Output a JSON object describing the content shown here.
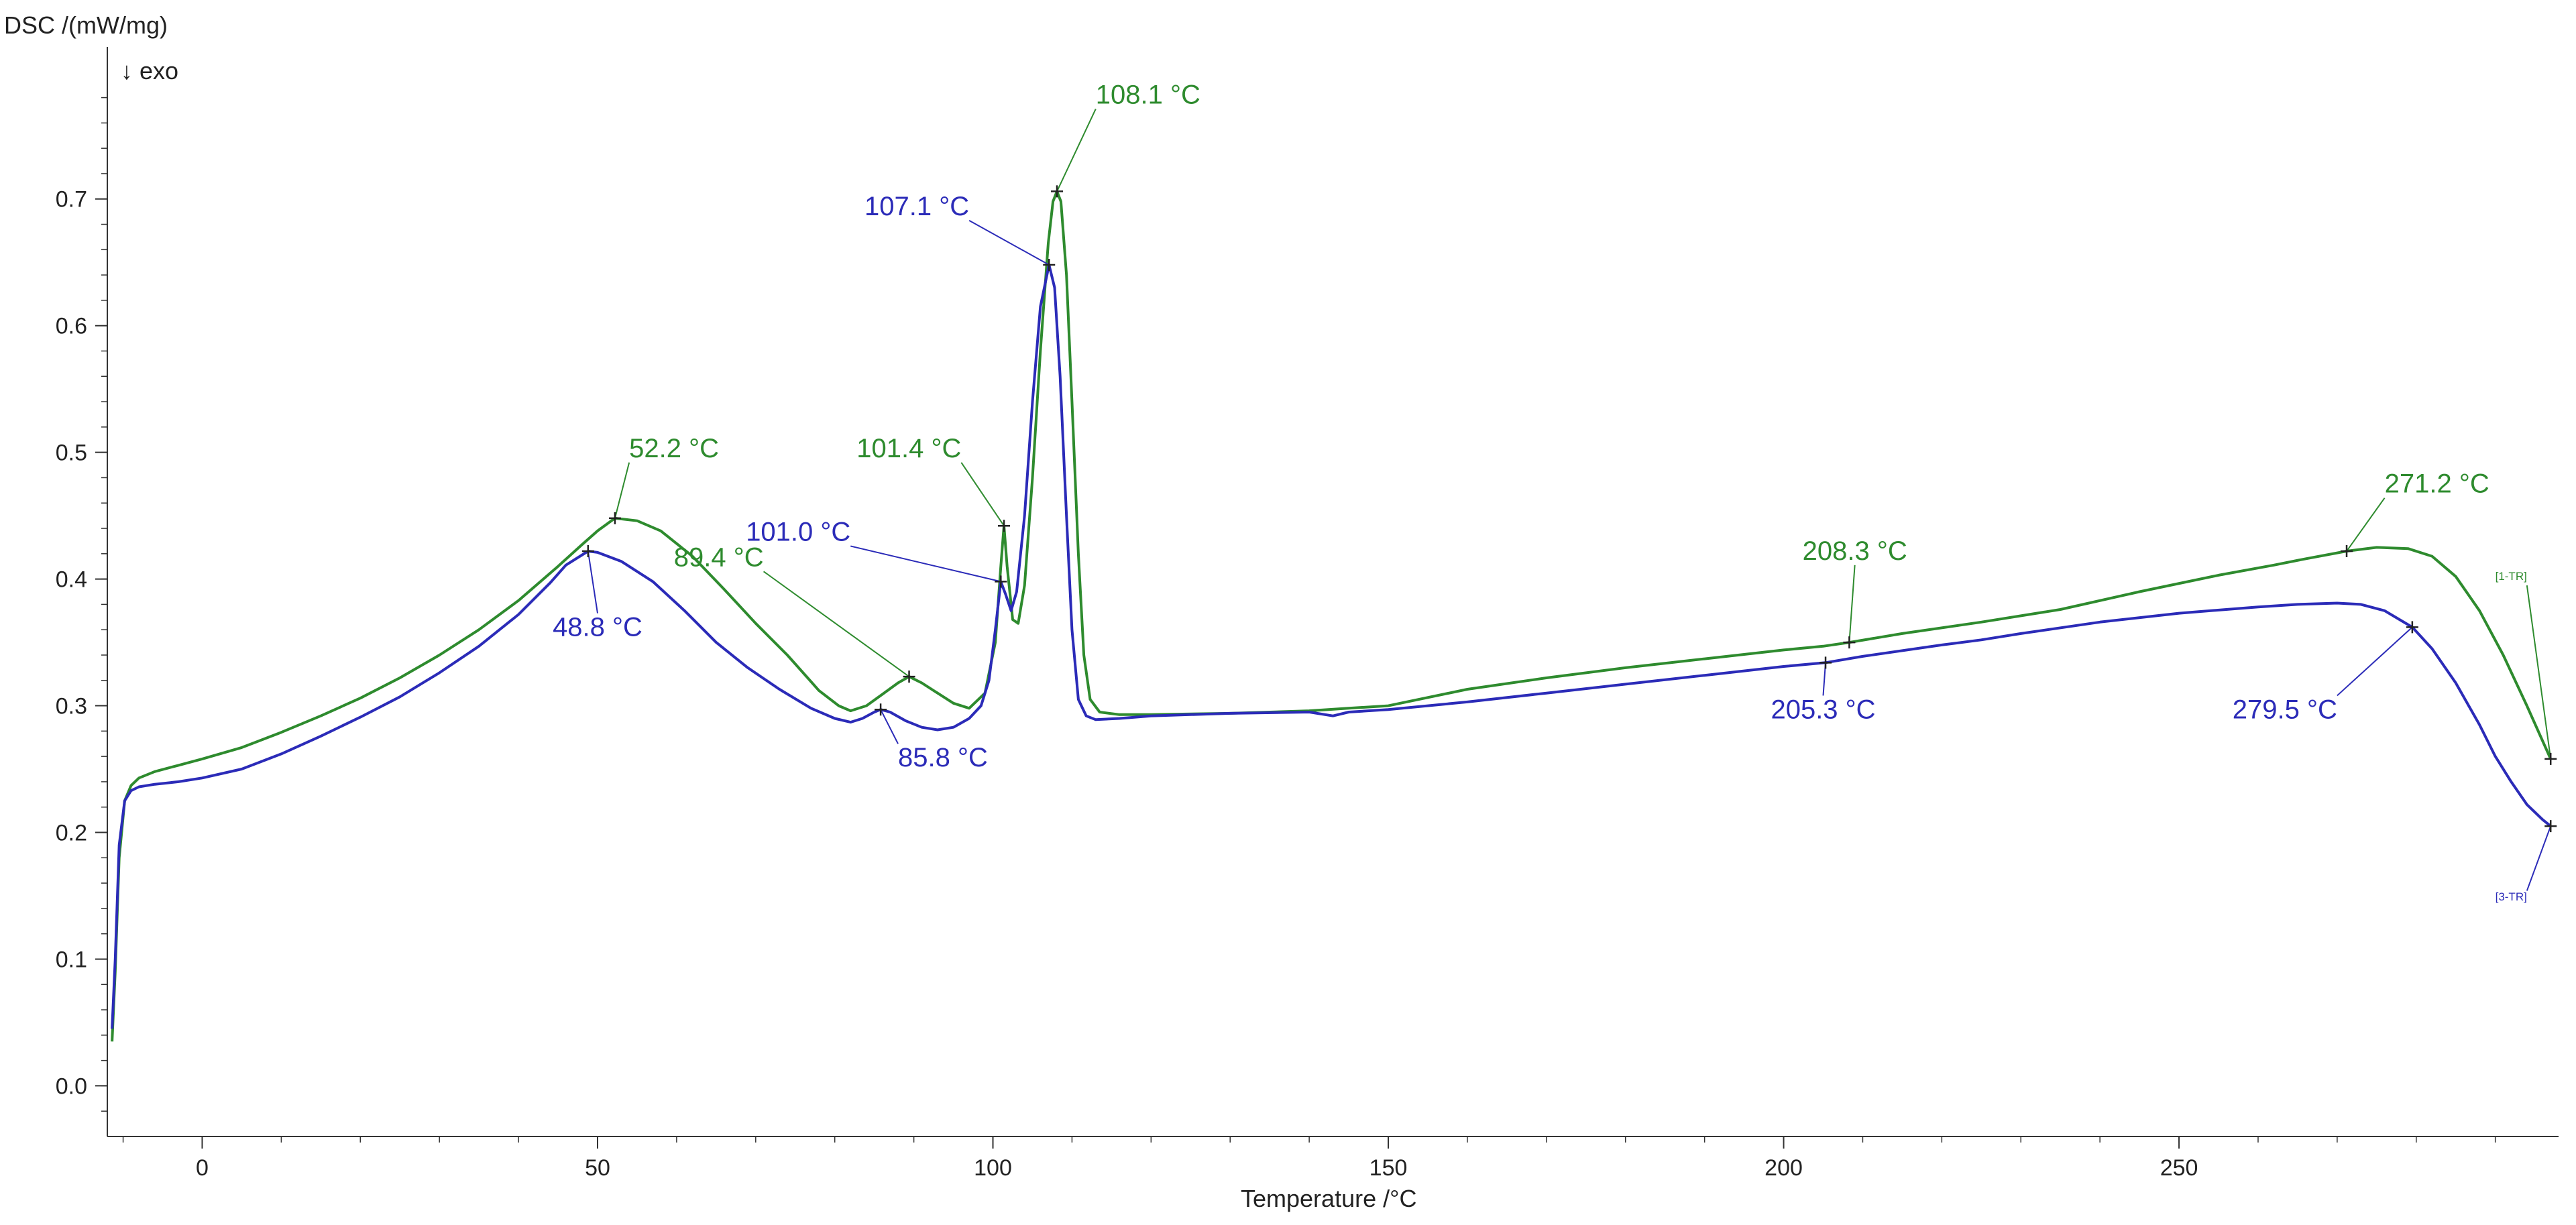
{
  "chart_data": {
    "type": "line",
    "ylabel": "DSC /(mW/mg)",
    "exo_note": "↓ exo",
    "xlabel": "Temperature /°C",
    "xlim": [
      -12,
      298
    ],
    "ylim": [
      -0.04,
      0.82
    ],
    "x_ticks": [
      0,
      50,
      100,
      150,
      200,
      250
    ],
    "y_ticks": [
      0.0,
      0.1,
      0.2,
      0.3,
      0.4,
      0.5,
      0.6,
      0.7
    ],
    "y_tick_labels": [
      "0.0",
      "0.1",
      "0.2",
      "0.3",
      "0.4",
      "0.5",
      "0.6",
      "0.7"
    ],
    "series": [
      {
        "name": "[1-TR]",
        "color": "#2e8b2e",
        "points": [
          [
            -11.4,
            0.035
          ],
          [
            -11.0,
            0.09
          ],
          [
            -10.5,
            0.18
          ],
          [
            -9.8,
            0.225
          ],
          [
            -9.0,
            0.237
          ],
          [
            -8.0,
            0.243
          ],
          [
            -6.0,
            0.248
          ],
          [
            -3.0,
            0.253
          ],
          [
            0,
            0.258
          ],
          [
            5,
            0.267
          ],
          [
            10,
            0.279
          ],
          [
            15,
            0.292
          ],
          [
            20,
            0.306
          ],
          [
            25,
            0.322
          ],
          [
            30,
            0.34
          ],
          [
            35,
            0.36
          ],
          [
            40,
            0.383
          ],
          [
            45,
            0.41
          ],
          [
            48,
            0.427
          ],
          [
            50,
            0.438
          ],
          [
            52.2,
            0.448
          ],
          [
            55,
            0.446
          ],
          [
            58,
            0.438
          ],
          [
            62,
            0.418
          ],
          [
            66,
            0.392
          ],
          [
            70,
            0.365
          ],
          [
            74,
            0.34
          ],
          [
            78,
            0.312
          ],
          [
            80.5,
            0.3
          ],
          [
            82,
            0.296
          ],
          [
            84,
            0.3
          ],
          [
            86,
            0.309
          ],
          [
            88,
            0.318
          ],
          [
            89.4,
            0.323
          ],
          [
            91,
            0.318
          ],
          [
            93,
            0.31
          ],
          [
            95,
            0.302
          ],
          [
            97,
            0.298
          ],
          [
            99,
            0.31
          ],
          [
            100.3,
            0.35
          ],
          [
            101.0,
            0.41
          ],
          [
            101.4,
            0.442
          ],
          [
            101.8,
            0.41
          ],
          [
            102.5,
            0.368
          ],
          [
            103.2,
            0.365
          ],
          [
            104,
            0.395
          ],
          [
            105,
            0.48
          ],
          [
            106,
            0.58
          ],
          [
            107,
            0.665
          ],
          [
            107.6,
            0.698
          ],
          [
            108.1,
            0.706
          ],
          [
            108.6,
            0.698
          ],
          [
            109.3,
            0.64
          ],
          [
            110,
            0.54
          ],
          [
            110.8,
            0.42
          ],
          [
            111.5,
            0.34
          ],
          [
            112.3,
            0.305
          ],
          [
            113.5,
            0.295
          ],
          [
            116,
            0.293
          ],
          [
            120,
            0.293
          ],
          [
            130,
            0.294
          ],
          [
            140,
            0.296
          ],
          [
            145,
            0.298
          ],
          [
            150,
            0.3
          ],
          [
            160,
            0.313
          ],
          [
            170,
            0.322
          ],
          [
            180,
            0.33
          ],
          [
            190,
            0.337
          ],
          [
            200,
            0.344
          ],
          [
            205,
            0.347
          ],
          [
            208.3,
            0.35
          ],
          [
            215,
            0.357
          ],
          [
            225,
            0.366
          ],
          [
            235,
            0.376
          ],
          [
            245,
            0.39
          ],
          [
            255,
            0.403
          ],
          [
            262,
            0.411
          ],
          [
            266,
            0.416
          ],
          [
            271.2,
            0.422
          ],
          [
            275,
            0.425
          ],
          [
            279,
            0.424
          ],
          [
            282,
            0.418
          ],
          [
            285,
            0.402
          ],
          [
            288,
            0.375
          ],
          [
            291,
            0.34
          ],
          [
            294,
            0.3
          ],
          [
            297,
            0.258
          ]
        ]
      },
      {
        "name": "[3-TR]",
        "color": "#2b2bb8",
        "points": [
          [
            -11.4,
            0.045
          ],
          [
            -11.0,
            0.1
          ],
          [
            -10.5,
            0.19
          ],
          [
            -9.8,
            0.225
          ],
          [
            -9.0,
            0.233
          ],
          [
            -8.0,
            0.236
          ],
          [
            -6.0,
            0.238
          ],
          [
            -3.0,
            0.24
          ],
          [
            0,
            0.243
          ],
          [
            5,
            0.25
          ],
          [
            10,
            0.262
          ],
          [
            15,
            0.276
          ],
          [
            20,
            0.291
          ],
          [
            25,
            0.307
          ],
          [
            30,
            0.326
          ],
          [
            35,
            0.347
          ],
          [
            40,
            0.372
          ],
          [
            44,
            0.397
          ],
          [
            46,
            0.411
          ],
          [
            48.8,
            0.422
          ],
          [
            50,
            0.421
          ],
          [
            53,
            0.414
          ],
          [
            57,
            0.398
          ],
          [
            61,
            0.375
          ],
          [
            65,
            0.35
          ],
          [
            69,
            0.33
          ],
          [
            73,
            0.313
          ],
          [
            77,
            0.298
          ],
          [
            80,
            0.29
          ],
          [
            82,
            0.287
          ],
          [
            83.5,
            0.29
          ],
          [
            85,
            0.295
          ],
          [
            85.8,
            0.297
          ],
          [
            87,
            0.295
          ],
          [
            89,
            0.288
          ],
          [
            91,
            0.283
          ],
          [
            93,
            0.281
          ],
          [
            95,
            0.283
          ],
          [
            97,
            0.29
          ],
          [
            98.5,
            0.3
          ],
          [
            99.5,
            0.32
          ],
          [
            100.3,
            0.36
          ],
          [
            101.0,
            0.398
          ],
          [
            101.6,
            0.388
          ],
          [
            102.3,
            0.375
          ],
          [
            103,
            0.39
          ],
          [
            104,
            0.45
          ],
          [
            105,
            0.54
          ],
          [
            106,
            0.615
          ],
          [
            107.1,
            0.648
          ],
          [
            107.8,
            0.63
          ],
          [
            108.5,
            0.56
          ],
          [
            109.3,
            0.45
          ],
          [
            110,
            0.36
          ],
          [
            110.8,
            0.305
          ],
          [
            111.8,
            0.292
          ],
          [
            113,
            0.289
          ],
          [
            116,
            0.29
          ],
          [
            120,
            0.292
          ],
          [
            130,
            0.294
          ],
          [
            140,
            0.295
          ],
          [
            143,
            0.292
          ],
          [
            145,
            0.295
          ],
          [
            150,
            0.297
          ],
          [
            160,
            0.303
          ],
          [
            170,
            0.31
          ],
          [
            180,
            0.317
          ],
          [
            190,
            0.324
          ],
          [
            200,
            0.331
          ],
          [
            205.3,
            0.334
          ],
          [
            210,
            0.339
          ],
          [
            220,
            0.348
          ],
          [
            225,
            0.352
          ],
          [
            230,
            0.357
          ],
          [
            240,
            0.366
          ],
          [
            250,
            0.373
          ],
          [
            260,
            0.378
          ],
          [
            265,
            0.38
          ],
          [
            270,
            0.381
          ],
          [
            273,
            0.38
          ],
          [
            276,
            0.375
          ],
          [
            279.5,
            0.362
          ],
          [
            282,
            0.345
          ],
          [
            285,
            0.318
          ],
          [
            288,
            0.285
          ],
          [
            290,
            0.26
          ],
          [
            292,
            0.24
          ],
          [
            294,
            0.222
          ],
          [
            296,
            0.21
          ],
          [
            297,
            0.205
          ]
        ]
      }
    ],
    "annotations": [
      {
        "text": "52.2 °C",
        "series": 0,
        "x": 52.2,
        "y": 0.448,
        "tx": 54.0,
        "ty": 0.492
      },
      {
        "text": "48.8 °C",
        "series": 1,
        "x": 48.8,
        "y": 0.422,
        "tx": 50.0,
        "ty": 0.373
      },
      {
        "text": "89.4 °C",
        "series": 0,
        "x": 89.4,
        "y": 0.323,
        "tx": 71.0,
        "ty": 0.406
      },
      {
        "text": "85.8 °C",
        "series": 1,
        "x": 85.8,
        "y": 0.297,
        "tx": 88.0,
        "ty": 0.27
      },
      {
        "text": "101.4 °C",
        "series": 0,
        "x": 101.4,
        "y": 0.442,
        "tx": 96.0,
        "ty": 0.492
      },
      {
        "text": "101.0 °C",
        "series": 1,
        "x": 101.0,
        "y": 0.398,
        "tx": 82.0,
        "ty": 0.426
      },
      {
        "text": "108.1 °C",
        "series": 0,
        "x": 108.1,
        "y": 0.706,
        "tx": 113.0,
        "ty": 0.771
      },
      {
        "text": "107.1 °C",
        "series": 1,
        "x": 107.1,
        "y": 0.648,
        "tx": 97.0,
        "ty": 0.683
      },
      {
        "text": "208.3 °C",
        "series": 0,
        "x": 208.3,
        "y": 0.35,
        "tx": 209.0,
        "ty": 0.411
      },
      {
        "text": "205.3 °C",
        "series": 1,
        "x": 205.3,
        "y": 0.334,
        "tx": 205.0,
        "ty": 0.308
      },
      {
        "text": "271.2 °C",
        "series": 0,
        "x": 271.2,
        "y": 0.422,
        "tx": 276.0,
        "ty": 0.464
      },
      {
        "text": "279.5 °C",
        "series": 1,
        "x": 279.5,
        "y": 0.362,
        "tx": 270.0,
        "ty": 0.308
      }
    ],
    "curve_labels": [
      {
        "text": "[1-TR]",
        "series": 0,
        "x": 297.0,
        "y": 0.258,
        "tx": 294.0,
        "ty": 0.395
      },
      {
        "text": "[3-TR]",
        "series": 1,
        "x": 297.0,
        "y": 0.205,
        "tx": 294.0,
        "ty": 0.154
      }
    ]
  }
}
